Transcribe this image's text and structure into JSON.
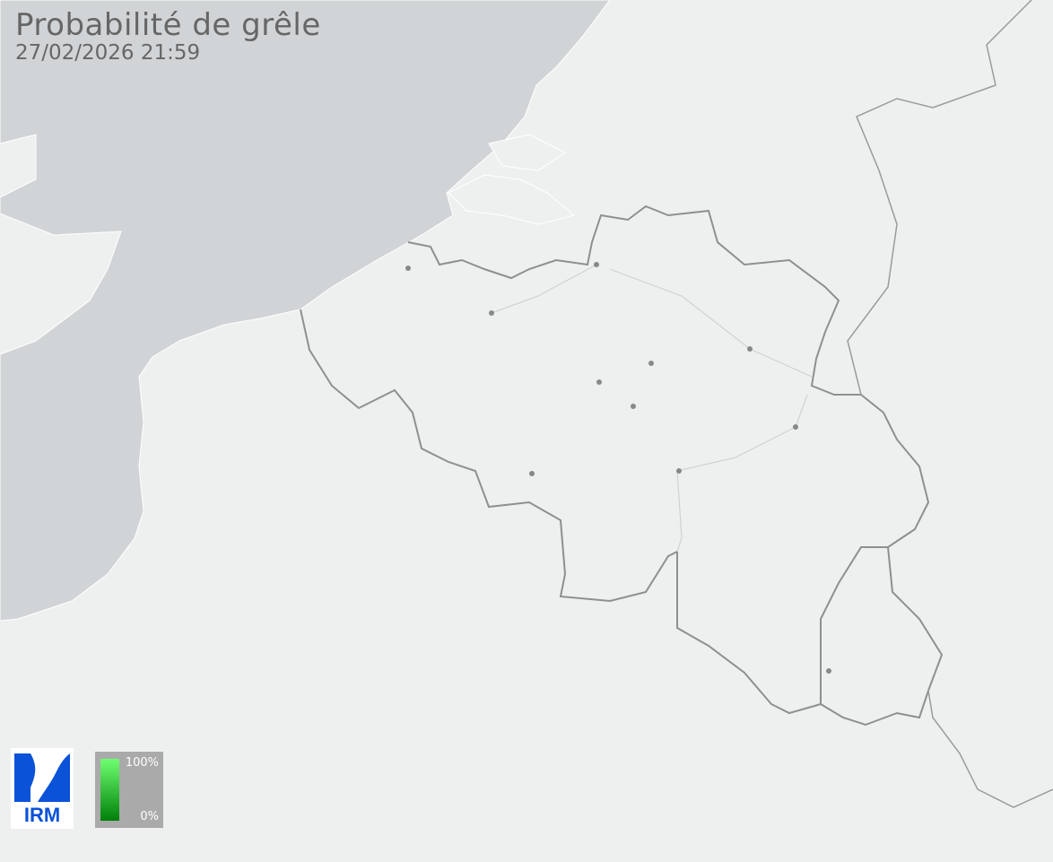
{
  "header": {
    "title": "Probabilité de grêle",
    "timestamp": "27/02/2026 21:59"
  },
  "logo": {
    "text": "IRM"
  },
  "legend": {
    "max_label": "100%",
    "min_label": "0%",
    "color_max": "#70ff70",
    "color_min": "#00800a"
  },
  "colors": {
    "land": "#eef0ef",
    "sea": "#d1d4d6",
    "border": "#8f8f8f",
    "city": "#888888"
  }
}
